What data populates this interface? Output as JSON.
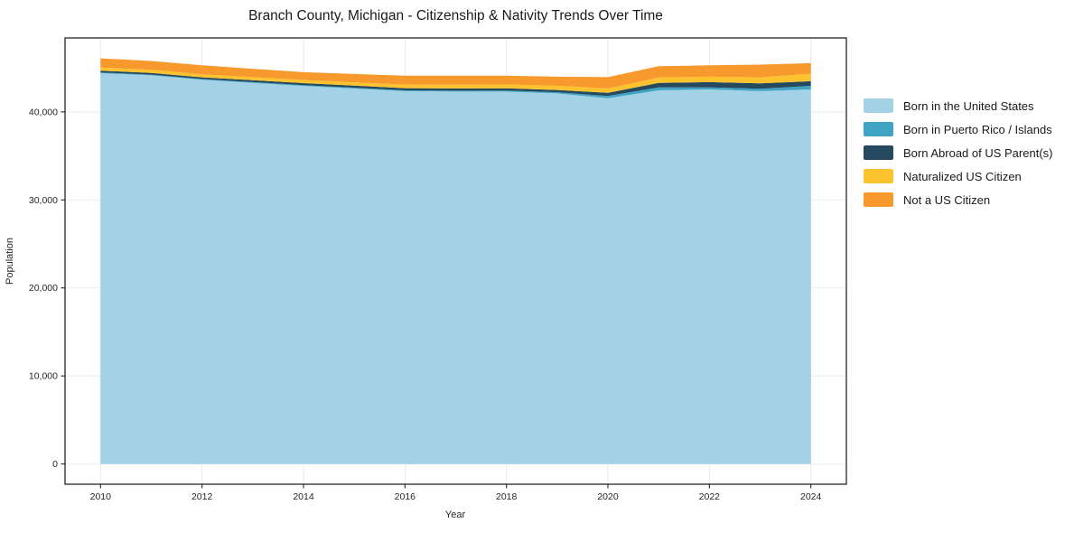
{
  "title": "Branch County, Michigan - Citizenship & Nativity Trends Over Time",
  "chart_data": {
    "type": "area",
    "stacked": true,
    "title": "Branch County, Michigan - Citizenship & Nativity Trends Over Time",
    "xlabel": "Year",
    "ylabel": "Population",
    "x": [
      2010,
      2011,
      2012,
      2013,
      2014,
      2015,
      2016,
      2017,
      2018,
      2019,
      2020,
      2021,
      2022,
      2023,
      2024
    ],
    "series": [
      {
        "name": "Born in the United States",
        "color": "#a3d1e6",
        "values": [
          44400,
          44150,
          43650,
          43300,
          42950,
          42650,
          42350,
          42300,
          42300,
          42100,
          41550,
          42450,
          42550,
          42350,
          42550
        ]
      },
      {
        "name": "Born in Puerto Rico / Islands",
        "color": "#3fa4c3",
        "values": [
          80,
          80,
          80,
          80,
          90,
          90,
          100,
          110,
          120,
          130,
          250,
          340,
          240,
          270,
          410
        ]
      },
      {
        "name": "Born Abroad of US Parent(s)",
        "color": "#254a5f",
        "values": [
          200,
          200,
          200,
          220,
          230,
          240,
          240,
          250,
          250,
          260,
          370,
          510,
          590,
          620,
          520
        ]
      },
      {
        "name": "Naturalized US Citizen",
        "color": "#fdc32e",
        "values": [
          350,
          350,
          340,
          350,
          350,
          380,
          410,
          430,
          440,
          480,
          480,
          620,
          620,
          690,
          860
        ]
      },
      {
        "name": "Not a US Citizen",
        "color": "#f8992e",
        "values": [
          1050,
          1000,
          1020,
          950,
          890,
          950,
          1020,
          1020,
          1010,
          1030,
          1300,
          1270,
          1290,
          1440,
          1200
        ]
      }
    ],
    "x_ticks": [
      2010,
      2012,
      2014,
      2016,
      2018,
      2020,
      2022,
      2024
    ],
    "y_ticks": [
      0,
      10000,
      20000,
      30000,
      40000
    ],
    "xlim": [
      2009.3,
      2024.7
    ],
    "ylim": [
      -2300,
      48400
    ],
    "grid": true,
    "grid_color": "#e9e9ef",
    "spine_color": "#262626",
    "legend_position": "right"
  }
}
